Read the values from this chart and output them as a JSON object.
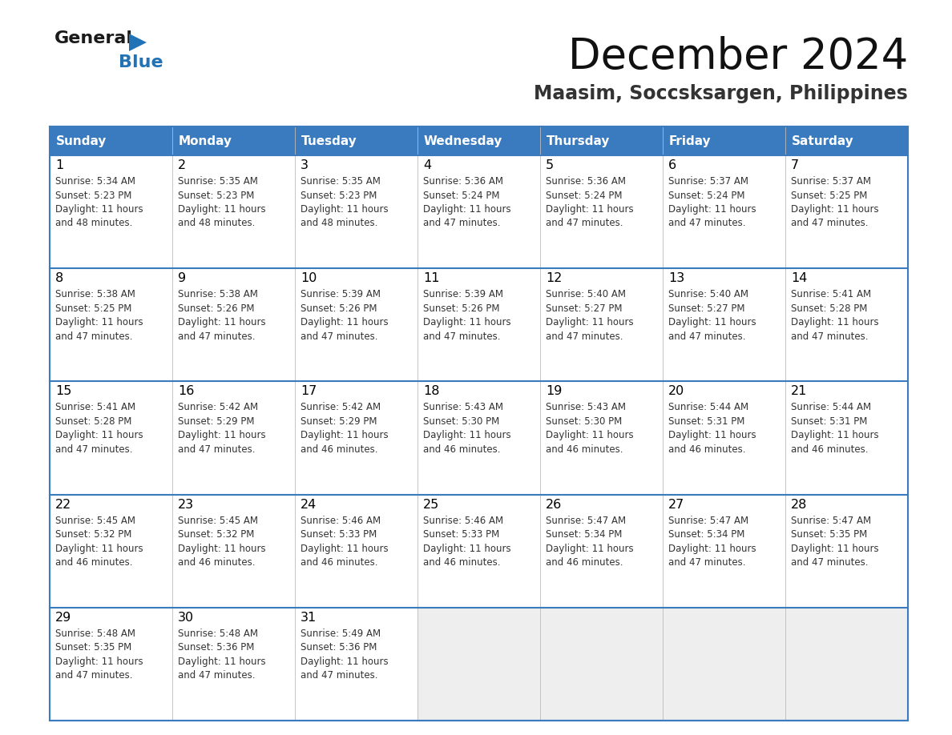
{
  "title": "December 2024",
  "subtitle": "Maasim, Soccsksargen, Philippines",
  "header_color": "#3A7BBF",
  "header_text_color": "#FFFFFF",
  "day_names": [
    "Sunday",
    "Monday",
    "Tuesday",
    "Wednesday",
    "Thursday",
    "Friday",
    "Saturday"
  ],
  "cell_bg_white": "#FFFFFF",
  "cell_bg_gray": "#EEEEEE",
  "border_color": "#3A7BBF",
  "grid_color": "#BBBBBB",
  "day_num_color": "#000000",
  "text_color": "#333333",
  "logo_black": "#1a1a1a",
  "logo_blue": "#2272B6",
  "title_color": "#111111",
  "subtitle_color": "#333333",
  "calendar": [
    [
      {
        "day": 1,
        "sunrise": "5:34 AM",
        "sunset": "5:23 PM",
        "daylight": "11 hours\nand 48 minutes."
      },
      {
        "day": 2,
        "sunrise": "5:35 AM",
        "sunset": "5:23 PM",
        "daylight": "11 hours\nand 48 minutes."
      },
      {
        "day": 3,
        "sunrise": "5:35 AM",
        "sunset": "5:23 PM",
        "daylight": "11 hours\nand 48 minutes."
      },
      {
        "day": 4,
        "sunrise": "5:36 AM",
        "sunset": "5:24 PM",
        "daylight": "11 hours\nand 47 minutes."
      },
      {
        "day": 5,
        "sunrise": "5:36 AM",
        "sunset": "5:24 PM",
        "daylight": "11 hours\nand 47 minutes."
      },
      {
        "day": 6,
        "sunrise": "5:37 AM",
        "sunset": "5:24 PM",
        "daylight": "11 hours\nand 47 minutes."
      },
      {
        "day": 7,
        "sunrise": "5:37 AM",
        "sunset": "5:25 PM",
        "daylight": "11 hours\nand 47 minutes."
      }
    ],
    [
      {
        "day": 8,
        "sunrise": "5:38 AM",
        "sunset": "5:25 PM",
        "daylight": "11 hours\nand 47 minutes."
      },
      {
        "day": 9,
        "sunrise": "5:38 AM",
        "sunset": "5:26 PM",
        "daylight": "11 hours\nand 47 minutes."
      },
      {
        "day": 10,
        "sunrise": "5:39 AM",
        "sunset": "5:26 PM",
        "daylight": "11 hours\nand 47 minutes."
      },
      {
        "day": 11,
        "sunrise": "5:39 AM",
        "sunset": "5:26 PM",
        "daylight": "11 hours\nand 47 minutes."
      },
      {
        "day": 12,
        "sunrise": "5:40 AM",
        "sunset": "5:27 PM",
        "daylight": "11 hours\nand 47 minutes."
      },
      {
        "day": 13,
        "sunrise": "5:40 AM",
        "sunset": "5:27 PM",
        "daylight": "11 hours\nand 47 minutes."
      },
      {
        "day": 14,
        "sunrise": "5:41 AM",
        "sunset": "5:28 PM",
        "daylight": "11 hours\nand 47 minutes."
      }
    ],
    [
      {
        "day": 15,
        "sunrise": "5:41 AM",
        "sunset": "5:28 PM",
        "daylight": "11 hours\nand 47 minutes."
      },
      {
        "day": 16,
        "sunrise": "5:42 AM",
        "sunset": "5:29 PM",
        "daylight": "11 hours\nand 47 minutes."
      },
      {
        "day": 17,
        "sunrise": "5:42 AM",
        "sunset": "5:29 PM",
        "daylight": "11 hours\nand 46 minutes."
      },
      {
        "day": 18,
        "sunrise": "5:43 AM",
        "sunset": "5:30 PM",
        "daylight": "11 hours\nand 46 minutes."
      },
      {
        "day": 19,
        "sunrise": "5:43 AM",
        "sunset": "5:30 PM",
        "daylight": "11 hours\nand 46 minutes."
      },
      {
        "day": 20,
        "sunrise": "5:44 AM",
        "sunset": "5:31 PM",
        "daylight": "11 hours\nand 46 minutes."
      },
      {
        "day": 21,
        "sunrise": "5:44 AM",
        "sunset": "5:31 PM",
        "daylight": "11 hours\nand 46 minutes."
      }
    ],
    [
      {
        "day": 22,
        "sunrise": "5:45 AM",
        "sunset": "5:32 PM",
        "daylight": "11 hours\nand 46 minutes."
      },
      {
        "day": 23,
        "sunrise": "5:45 AM",
        "sunset": "5:32 PM",
        "daylight": "11 hours\nand 46 minutes."
      },
      {
        "day": 24,
        "sunrise": "5:46 AM",
        "sunset": "5:33 PM",
        "daylight": "11 hours\nand 46 minutes."
      },
      {
        "day": 25,
        "sunrise": "5:46 AM",
        "sunset": "5:33 PM",
        "daylight": "11 hours\nand 46 minutes."
      },
      {
        "day": 26,
        "sunrise": "5:47 AM",
        "sunset": "5:34 PM",
        "daylight": "11 hours\nand 46 minutes."
      },
      {
        "day": 27,
        "sunrise": "5:47 AM",
        "sunset": "5:34 PM",
        "daylight": "11 hours\nand 47 minutes."
      },
      {
        "day": 28,
        "sunrise": "5:47 AM",
        "sunset": "5:35 PM",
        "daylight": "11 hours\nand 47 minutes."
      }
    ],
    [
      {
        "day": 29,
        "sunrise": "5:48 AM",
        "sunset": "5:35 PM",
        "daylight": "11 hours\nand 47 minutes."
      },
      {
        "day": 30,
        "sunrise": "5:48 AM",
        "sunset": "5:36 PM",
        "daylight": "11 hours\nand 47 minutes."
      },
      {
        "day": 31,
        "sunrise": "5:49 AM",
        "sunset": "5:36 PM",
        "daylight": "11 hours\nand 47 minutes."
      },
      null,
      null,
      null,
      null
    ]
  ]
}
